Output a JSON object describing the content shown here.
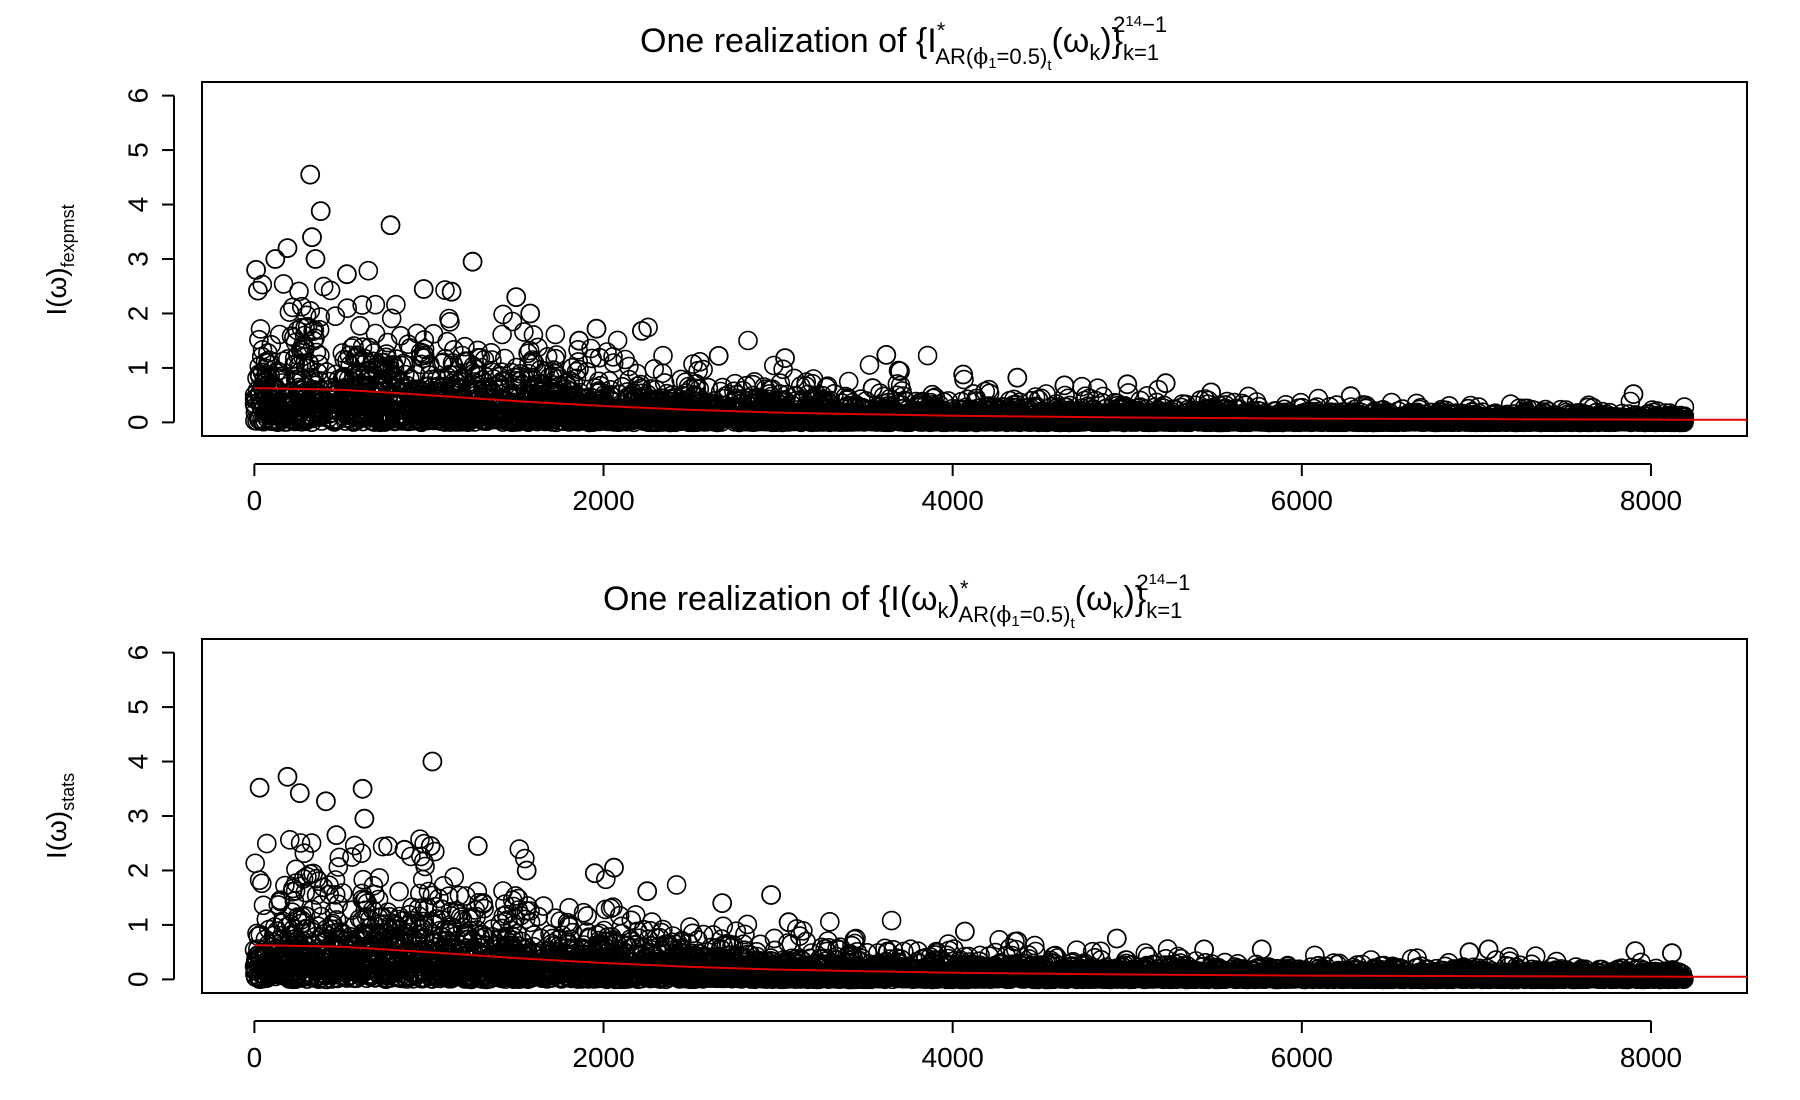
{
  "chart_data": [
    {
      "type": "scatter",
      "title_parts": {
        "lead": "One realization of {I",
        "sup_star": "*",
        "sub_ar": "AR(",
        "sub_phi": "ϕ",
        "sub_phi_index": "1",
        "sub_eq": "=0.5)",
        "sub_t": "t",
        "omega_open": "(ω",
        "omega_k": "k",
        "omega_close": ")}",
        "range_sub": "k=1",
        "range_sup": "2",
        "range_sup_exp": "14",
        "range_sup_tail": "−1"
      },
      "ylabel": {
        "main": "I(ω)",
        "sub": "fexpmst"
      },
      "xlim": [
        -300,
        8550
      ],
      "ylim": [
        -0.25,
        6.25
      ],
      "x_ticks": [
        "0",
        "2000",
        "4000",
        "6000",
        "8000"
      ],
      "y_ticks": [
        "0",
        "1",
        "2",
        "3",
        "4",
        "5",
        "6"
      ],
      "smooth_line": {
        "color": "#e00000",
        "x": [
          0,
          500,
          1000,
          1500,
          2000,
          2500,
          3000,
          3500,
          4000,
          5000,
          6000,
          7000,
          8192,
          8550
        ],
        "y": [
          0.63,
          0.6,
          0.5,
          0.39,
          0.3,
          0.23,
          0.18,
          0.15,
          0.12,
          0.09,
          0.07,
          0.06,
          0.05,
          0.05
        ]
      },
      "highlighted_points": [
        {
          "x": 320,
          "y": 4.55
        },
        {
          "x": 380,
          "y": 3.88
        },
        {
          "x": 780,
          "y": 3.62
        },
        {
          "x": 330,
          "y": 3.4
        },
        {
          "x": 190,
          "y": 3.2
        },
        {
          "x": 120,
          "y": 3.0
        },
        {
          "x": 350,
          "y": 3.0
        },
        {
          "x": 1250,
          "y": 2.95
        },
        {
          "x": 10,
          "y": 2.8
        },
        {
          "x": 20,
          "y": 2.42
        },
        {
          "x": 530,
          "y": 2.72
        },
        {
          "x": 970,
          "y": 2.45
        },
        {
          "x": 1130,
          "y": 2.4
        },
        {
          "x": 1500,
          "y": 2.3
        },
        {
          "x": 1580,
          "y": 2.0
        },
        {
          "x": 1960,
          "y": 1.72
        },
        {
          "x": 2220,
          "y": 1.68
        },
        {
          "x": 1860,
          "y": 1.5
        },
        {
          "x": 2660,
          "y": 1.22
        },
        {
          "x": 3040,
          "y": 1.18
        },
        {
          "x": 3620,
          "y": 1.24
        },
        {
          "x": 3690,
          "y": 0.95
        },
        {
          "x": 4060,
          "y": 0.88
        },
        {
          "x": 4370,
          "y": 0.82
        },
        {
          "x": 4640,
          "y": 0.68
        },
        {
          "x": 5000,
          "y": 0.7
        },
        {
          "x": 5220,
          "y": 0.72
        },
        {
          "x": 5480,
          "y": 0.55
        },
        {
          "x": 6280,
          "y": 0.48
        },
        {
          "x": 7900,
          "y": 0.52
        }
      ]
    },
    {
      "type": "scatter",
      "title_parts": {
        "lead": "One realization of {I(ω",
        "omega_k1": "k",
        "close1": ")",
        "sup_star": "*",
        "sub_ar": "AR(",
        "sub_phi": "ϕ",
        "sub_phi_index": "1",
        "sub_eq": "=0.5)",
        "sub_t": "t",
        "omega_open": "(ω",
        "omega_k": "k",
        "omega_close": ")}",
        "range_sub": "k=1",
        "range_sup": "2",
        "range_sup_exp": "14",
        "range_sup_tail": "−1"
      },
      "ylabel": {
        "main": "I(ω)",
        "sub": "stats"
      },
      "xlim": [
        -300,
        8550
      ],
      "ylim": [
        -0.25,
        6.25
      ],
      "x_ticks": [
        "0",
        "2000",
        "4000",
        "6000",
        "8000"
      ],
      "y_ticks": [
        "0",
        "1",
        "2",
        "3",
        "4",
        "5",
        "6"
      ],
      "smooth_line": {
        "color": "#e00000",
        "x": [
          0,
          500,
          1000,
          1500,
          2000,
          2500,
          3000,
          3500,
          4000,
          5000,
          6000,
          7000,
          8192,
          8550
        ],
        "y": [
          0.63,
          0.6,
          0.5,
          0.39,
          0.3,
          0.23,
          0.18,
          0.15,
          0.12,
          0.09,
          0.07,
          0.06,
          0.05,
          0.05
        ]
      },
      "highlighted_points": [
        {
          "x": 1020,
          "y": 4.0
        },
        {
          "x": 190,
          "y": 3.72
        },
        {
          "x": 30,
          "y": 3.52
        },
        {
          "x": 620,
          "y": 3.5
        },
        {
          "x": 260,
          "y": 3.42
        },
        {
          "x": 410,
          "y": 3.27
        },
        {
          "x": 630,
          "y": 2.95
        },
        {
          "x": 470,
          "y": 2.65
        },
        {
          "x": 1280,
          "y": 2.45
        },
        {
          "x": 1010,
          "y": 2.45
        },
        {
          "x": 860,
          "y": 2.38
        },
        {
          "x": 2060,
          "y": 2.05
        },
        {
          "x": 1560,
          "y": 2.0
        },
        {
          "x": 1950,
          "y": 1.95
        },
        {
          "x": 2250,
          "y": 1.62
        },
        {
          "x": 2960,
          "y": 1.55
        },
        {
          "x": 2680,
          "y": 1.4
        },
        {
          "x": 3060,
          "y": 1.05
        },
        {
          "x": 4070,
          "y": 0.88
        },
        {
          "x": 4370,
          "y": 0.7
        },
        {
          "x": 4940,
          "y": 0.75
        },
        {
          "x": 5440,
          "y": 0.55
        },
        {
          "x": 5770,
          "y": 0.55
        },
        {
          "x": 6960,
          "y": 0.5
        },
        {
          "x": 7070,
          "y": 0.55
        },
        {
          "x": 7910,
          "y": 0.52
        },
        {
          "x": 8120,
          "y": 0.48
        }
      ]
    }
  ],
  "colors": {
    "points": "#000000",
    "smooth": "#e00000",
    "axes": "#000000"
  }
}
